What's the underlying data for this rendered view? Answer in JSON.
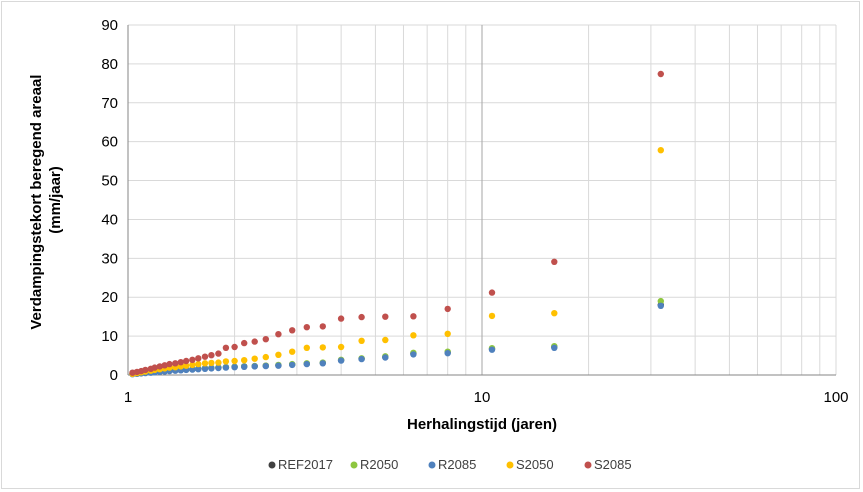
{
  "chart_data": {
    "type": "scatter",
    "title": "",
    "xlabel": "Herhalingstijd  (jaren)",
    "ylabel": "Verdampingstekort beregend areaal (mm/jaar)",
    "ylabel_lines": [
      "Verdampingstekort beregend areaal",
      "(mm/jaar)"
    ],
    "x_scale": "log",
    "xlim": [
      1,
      100
    ],
    "ylim": [
      0,
      90
    ],
    "x_ticks": [
      1,
      10,
      100
    ],
    "y_ticks": [
      0,
      10,
      20,
      30,
      40,
      50,
      60,
      70,
      80,
      90
    ],
    "grid": true,
    "legend_position": "bottom",
    "x": [
      1.03,
      1.06,
      1.09,
      1.12,
      1.16,
      1.19,
      1.23,
      1.27,
      1.31,
      1.36,
      1.41,
      1.46,
      1.52,
      1.58,
      1.65,
      1.72,
      1.8,
      1.89,
      2.0,
      2.13,
      2.28,
      2.45,
      2.66,
      2.91,
      3.2,
      3.55,
      4.0,
      4.57,
      5.33,
      6.4,
      8.0,
      10.67,
      16.0,
      32.0
    ],
    "series": [
      {
        "name": "REF2017",
        "color": "#404040",
        "values": [
          0.3,
          0.4,
          0.5,
          0.6,
          0.7,
          0.8,
          0.9,
          1.0,
          1.1,
          1.2,
          1.3,
          1.4,
          1.5,
          1.6,
          1.7,
          1.8,
          1.9,
          2.0,
          2.1,
          2.2,
          2.3,
          2.4,
          2.5,
          2.7,
          2.9,
          3.1,
          3.8,
          4.2,
          4.6,
          5.5,
          5.8,
          6.7,
          7.2,
          18.0
        ]
      },
      {
        "name": "R2050",
        "color": "#8DC63F",
        "values": [
          0.3,
          0.4,
          0.5,
          0.6,
          0.7,
          0.8,
          0.9,
          1.0,
          1.1,
          1.2,
          1.3,
          1.4,
          1.5,
          1.6,
          1.7,
          1.8,
          1.9,
          2.0,
          2.1,
          2.2,
          2.3,
          2.4,
          2.6,
          2.8,
          3.0,
          3.2,
          3.9,
          4.3,
          4.8,
          5.7,
          6.0,
          6.9,
          7.4,
          19.0
        ]
      },
      {
        "name": "R2085",
        "color": "#4F81BD",
        "values": [
          0.2,
          0.3,
          0.4,
          0.5,
          0.6,
          0.7,
          0.8,
          0.9,
          1.0,
          1.1,
          1.2,
          1.3,
          1.4,
          1.5,
          1.6,
          1.7,
          1.8,
          1.9,
          2.0,
          2.1,
          2.2,
          2.3,
          2.4,
          2.6,
          2.8,
          3.0,
          3.7,
          4.1,
          4.5,
          5.3,
          5.6,
          6.5,
          7.0,
          17.8
        ]
      },
      {
        "name": "S2050",
        "color": "#FFC000",
        "values": [
          0.3,
          0.5,
          0.7,
          0.9,
          1.1,
          1.3,
          1.5,
          1.7,
          1.9,
          2.0,
          2.2,
          2.4,
          2.6,
          2.8,
          3.0,
          3.1,
          3.2,
          3.5,
          3.6,
          3.8,
          4.2,
          4.6,
          5.2,
          6.0,
          7.0,
          7.1,
          7.2,
          8.8,
          9.0,
          10.2,
          10.6,
          15.2,
          15.9,
          57.8
        ]
      },
      {
        "name": "S2085",
        "color": "#C0504D",
        "values": [
          0.6,
          0.8,
          1.0,
          1.3,
          1.6,
          1.9,
          2.2,
          2.5,
          2.8,
          3.0,
          3.3,
          3.6,
          3.9,
          4.3,
          4.7,
          5.1,
          5.5,
          7.0,
          7.2,
          8.2,
          8.6,
          9.2,
          10.5,
          11.5,
          12.3,
          12.5,
          14.5,
          14.9,
          15.0,
          15.1,
          17.0,
          21.2,
          29.1,
          77.4
        ]
      }
    ]
  }
}
